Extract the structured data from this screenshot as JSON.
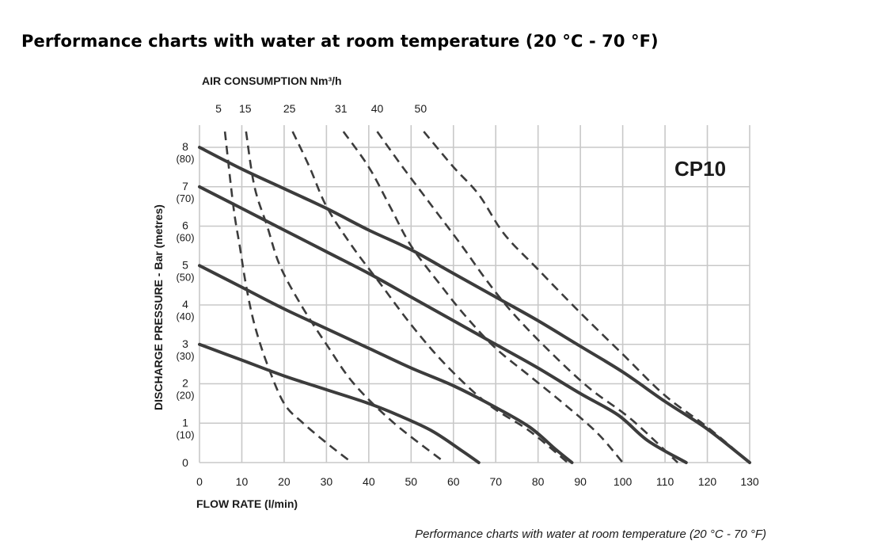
{
  "page": {
    "title": "Performance charts with water at room temperature (20 °C - 70 °F)",
    "caption": "Performance charts with water at room temperature (20 °C - 70 °F)"
  },
  "chart_data": {
    "type": "line",
    "model": "CP10",
    "xlabel": "FLOW RATE (l/min)",
    "ylabel": "DISCHARGE PRESSURE - Bar (metres)",
    "air_axis_label": "AIR CONSUMPTION Nm³/h",
    "xlim": [
      0,
      130
    ],
    "ylim": [
      0,
      8
    ],
    "grid": true,
    "x_ticks": [
      0,
      10,
      20,
      30,
      40,
      50,
      60,
      70,
      80,
      90,
      100,
      110,
      120,
      130
    ],
    "y_ticks": [
      {
        "value": 0,
        "label": "0",
        "sub": ""
      },
      {
        "value": 1,
        "label": "1",
        "sub": "(10)"
      },
      {
        "value": 2,
        "label": "2",
        "sub": "(20)"
      },
      {
        "value": 3,
        "label": "3",
        "sub": "(30)"
      },
      {
        "value": 4,
        "label": "4",
        "sub": "(40)"
      },
      {
        "value": 5,
        "label": "5",
        "sub": "(50)"
      },
      {
        "value": 6,
        "label": "6",
        "sub": "(60)"
      },
      {
        "value": 7,
        "label": "7",
        "sub": "(70)"
      },
      {
        "value": 8,
        "label": "8",
        "sub": "(80)"
      }
    ],
    "pressure_curves": [
      {
        "supply_bar": 3,
        "points": [
          [
            0,
            3
          ],
          [
            10,
            2.6
          ],
          [
            20,
            2.2
          ],
          [
            30,
            1.85
          ],
          [
            40,
            1.5
          ],
          [
            47,
            1.2
          ],
          [
            55,
            0.8
          ],
          [
            62,
            0.3
          ],
          [
            66,
            0
          ]
        ]
      },
      {
        "supply_bar": 5,
        "points": [
          [
            0,
            5
          ],
          [
            10,
            4.45
          ],
          [
            20,
            3.9
          ],
          [
            30,
            3.4
          ],
          [
            40,
            2.9
          ],
          [
            50,
            2.4
          ],
          [
            60,
            1.95
          ],
          [
            70,
            1.4
          ],
          [
            78,
            0.9
          ],
          [
            84,
            0.35
          ],
          [
            88,
            0
          ]
        ]
      },
      {
        "supply_bar": 7,
        "points": [
          [
            0,
            7
          ],
          [
            10,
            6.45
          ],
          [
            20,
            5.9
          ],
          [
            30,
            5.35
          ],
          [
            40,
            4.8
          ],
          [
            50,
            4.2
          ],
          [
            60,
            3.6
          ],
          [
            70,
            3.0
          ],
          [
            80,
            2.4
          ],
          [
            90,
            1.75
          ],
          [
            99,
            1.2
          ],
          [
            106,
            0.55
          ],
          [
            115,
            0
          ]
        ]
      },
      {
        "supply_bar": 8,
        "points": [
          [
            0,
            8
          ],
          [
            10,
            7.45
          ],
          [
            20,
            6.95
          ],
          [
            30,
            6.45
          ],
          [
            40,
            5.9
          ],
          [
            50,
            5.4
          ],
          [
            60,
            4.8
          ],
          [
            70,
            4.2
          ],
          [
            80,
            3.6
          ],
          [
            90,
            2.95
          ],
          [
            100,
            2.3
          ],
          [
            110,
            1.55
          ],
          [
            120,
            0.85
          ],
          [
            130,
            0
          ]
        ]
      }
    ],
    "air_consumption_curves": [
      {
        "air_nm3h": "5",
        "points": [
          [
            6,
            8.4
          ],
          [
            8,
            6.5
          ],
          [
            9.5,
            5.5
          ],
          [
            11,
            4.5
          ],
          [
            13,
            3.5
          ],
          [
            16,
            2.5
          ],
          [
            20,
            1.5
          ],
          [
            24.5,
            1
          ],
          [
            30,
            0.5
          ],
          [
            36,
            0
          ]
        ]
      },
      {
        "air_nm3h": "15",
        "points": [
          [
            11,
            8.4
          ],
          [
            13,
            7
          ],
          [
            16,
            6
          ],
          [
            19,
            5
          ],
          [
            24,
            4
          ],
          [
            30,
            3
          ],
          [
            36.5,
            2
          ],
          [
            46,
            1
          ],
          [
            58,
            0
          ]
        ]
      },
      {
        "air_nm3h": "25",
        "points": [
          [
            22,
            8.4
          ],
          [
            26,
            7.5
          ],
          [
            30,
            6.5
          ],
          [
            36,
            5.5
          ],
          [
            43,
            4.5
          ],
          [
            50,
            3.5
          ],
          [
            58,
            2.5
          ],
          [
            68,
            1.5
          ],
          [
            78,
            0.8
          ],
          [
            87,
            0
          ]
        ]
      },
      {
        "air_nm3h": "31",
        "points": [
          [
            34,
            8.4
          ],
          [
            40,
            7.5
          ],
          [
            45,
            6.5
          ],
          [
            50,
            5.5
          ],
          [
            57,
            4.5
          ],
          [
            63,
            3.7
          ],
          [
            70,
            2.9
          ],
          [
            78,
            2.2
          ],
          [
            86,
            1.5
          ],
          [
            94,
            0.75
          ],
          [
            100,
            0
          ]
        ]
      },
      {
        "air_nm3h": "40",
        "points": [
          [
            42,
            8.4
          ],
          [
            48,
            7.5
          ],
          [
            55,
            6.5
          ],
          [
            62,
            5.5
          ],
          [
            68,
            4.6
          ],
          [
            74,
            3.8
          ],
          [
            82,
            2.9
          ],
          [
            92,
            1.9
          ],
          [
            102,
            1.1
          ],
          [
            113,
            0
          ]
        ]
      },
      {
        "air_nm3h": "50",
        "points": [
          [
            53,
            8.4
          ],
          [
            60,
            7.5
          ],
          [
            66,
            6.8
          ],
          [
            72,
            5.8
          ],
          [
            80,
            4.9
          ],
          [
            90,
            3.8
          ],
          [
            100,
            2.75
          ],
          [
            110,
            1.7
          ],
          [
            120,
            0.9
          ],
          [
            130,
            0
          ]
        ]
      }
    ]
  },
  "colors": {
    "curve": "#3c3c3c",
    "grid": "#c8c8c8"
  }
}
